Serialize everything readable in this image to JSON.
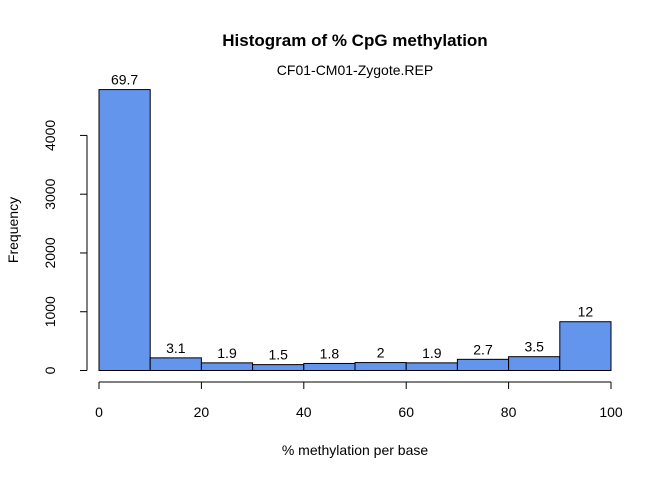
{
  "chart_data": {
    "type": "bar",
    "title": "Histogram of % CpG methylation",
    "subtitle": "CF01-CM01-Zygote.REP",
    "xlabel": "% methylation per base",
    "ylabel": "Frequency",
    "bin_edges": [
      0,
      10,
      20,
      30,
      40,
      50,
      60,
      70,
      80,
      90,
      100
    ],
    "values": [
      4780,
      215,
      130,
      100,
      120,
      135,
      130,
      190,
      235,
      830
    ],
    "bar_labels": [
      "69.7",
      "3.1",
      "1.9",
      "1.5",
      "1.8",
      "2",
      "1.9",
      "2.7",
      "3.5",
      "12"
    ],
    "xlim": [
      0,
      100
    ],
    "ylim": [
      0,
      4800
    ],
    "x_ticks": [
      0,
      20,
      40,
      60,
      80,
      100
    ],
    "x_tick_labels": [
      "0",
      "20",
      "40",
      "60",
      "80",
      "100"
    ],
    "y_ticks": [
      0,
      1000,
      2000,
      3000,
      4000
    ],
    "y_tick_labels": [
      "0",
      "1000",
      "2000",
      "3000",
      "4000"
    ],
    "bar_color": "#6495ED",
    "grid": false,
    "legend": "none"
  }
}
